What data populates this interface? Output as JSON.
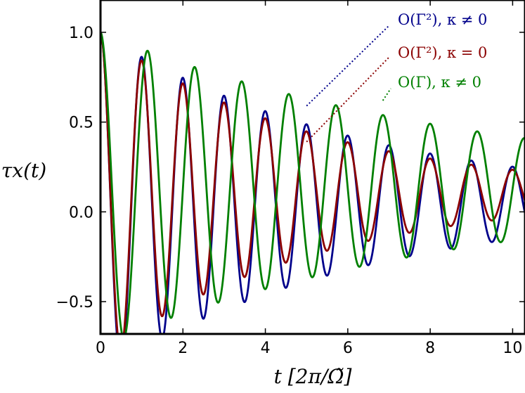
{
  "chart_data": {
    "type": "line",
    "title": "",
    "xlabel": "t [2π/Ω̃]",
    "ylabel": "τx(t)",
    "xlim": [
      0,
      10.3
    ],
    "ylim": [
      -0.68,
      1.18
    ],
    "xticks": [
      0,
      2,
      4,
      6,
      8,
      10
    ],
    "xtick_labels": [
      "0",
      "2",
      "4",
      "6",
      "8",
      "10"
    ],
    "yticks": [
      -0.5,
      0.0,
      0.5,
      1.0
    ],
    "ytick_labels": [
      "−0.5",
      "0.0",
      "0.5",
      "1.0"
    ],
    "grid": false,
    "legend_placement": "top-right",
    "series": [
      {
        "name": "O(Γ²), κ ≠ 0",
        "color": "#00008b",
        "model": {
          "amplitude": 1.0,
          "frequency": 1.0,
          "decay": 0.155,
          "offset": 0.05
        },
        "sample_points": {
          "x": [
            0,
            0.5,
            1.0,
            1.5,
            2.0,
            3.0,
            4.0,
            5.0,
            6.0,
            8.0,
            10.0
          ],
          "y": [
            1.0,
            -0.58,
            0.89,
            -0.5,
            0.8,
            0.71,
            0.64,
            0.57,
            0.52,
            0.44,
            0.36
          ]
        }
      },
      {
        "name": "O(Γ²), κ = 0",
        "color": "#8b0000",
        "model": {
          "amplitude": 1.0,
          "frequency": 1.0,
          "decay": 0.19,
          "offset": 0.1,
          "offset_decay": 0.4
        },
        "sample_points": {
          "x": [
            0,
            0.5,
            1.0,
            1.5,
            2.0,
            3.0,
            4.0,
            5.0,
            6.0,
            8.0,
            10.0
          ],
          "y": [
            1.0,
            -0.55,
            0.82,
            -0.4,
            0.68,
            0.56,
            0.47,
            0.4,
            0.34,
            0.25,
            0.2
          ]
        }
      },
      {
        "name": "O(Γ), κ ≠ 0",
        "color": "#008000",
        "model": {
          "amplitude": 1.0,
          "frequency": 0.875,
          "decay": 0.11,
          "offset": 0.13,
          "offset_decay": 0.2
        },
        "sample_points": {
          "x": [
            0,
            0.55,
            1.1,
            2.3,
            3.4,
            4.6,
            5.7,
            6.8,
            8.0,
            9.1
          ],
          "y": [
            1.0,
            -0.48,
            0.92,
            0.85,
            0.78,
            0.72,
            0.66,
            0.61,
            0.56,
            0.52
          ]
        }
      }
    ],
    "annotations": [
      {
        "text": "O(Γ²), κ ≠ 0",
        "points_to": {
          "x": 5.0,
          "y": 0.59
        }
      },
      {
        "text": "O(Γ²), κ = 0",
        "points_to": {
          "x": 5.0,
          "y": 0.39
        }
      },
      {
        "text": "O(Γ), κ ≠ 0",
        "points_to": {
          "x": 6.85,
          "y": 0.62
        }
      }
    ]
  }
}
